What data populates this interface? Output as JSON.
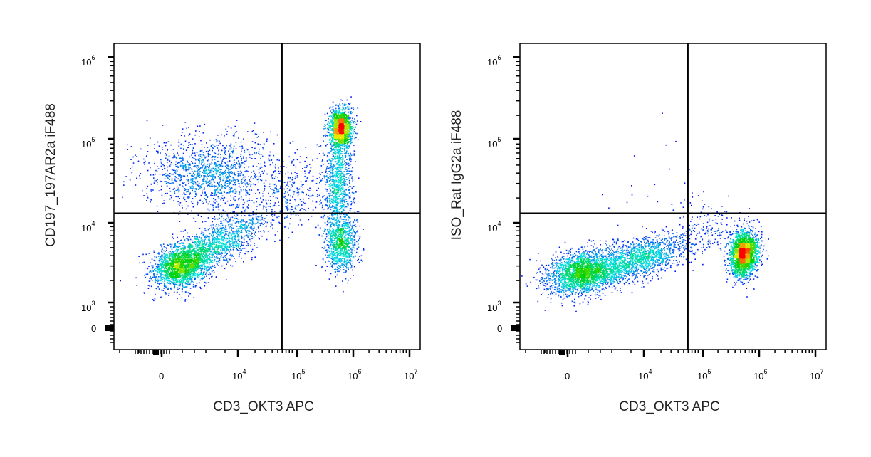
{
  "chart_data": [
    {
      "type": "scatter",
      "subtype": "flow-cytometry-density-dot-plot",
      "xlabel": "CD3_OKT3 APC",
      "ylabel": "CD197_197AR2a iF488",
      "x_ticks": [
        {
          "base": "",
          "exp": "",
          "plain": "0"
        },
        {
          "base": "10",
          "exp": "4"
        },
        {
          "base": "10",
          "exp": "5"
        },
        {
          "base": "10",
          "exp": "6"
        },
        {
          "base": "10",
          "exp": "7"
        }
      ],
      "y_ticks": [
        {
          "base": "",
          "exp": "",
          "plain": "0"
        },
        {
          "base": "10",
          "exp": "3"
        },
        {
          "base": "10",
          "exp": "4"
        },
        {
          "base": "10",
          "exp": "5"
        },
        {
          "base": "10",
          "exp": "6"
        }
      ],
      "quadrant_gate": {
        "x": 59000,
        "y": 13000
      },
      "populations_log10": [
        {
          "cx": 3.0,
          "cy": 3.48,
          "sx": 0.25,
          "sy": 0.13,
          "rho": 0.2,
          "n": 1700
        },
        {
          "cx": 3.6,
          "cy": 3.75,
          "sx": 0.45,
          "sy": 0.2,
          "rho": 0.7,
          "n": 1400
        },
        {
          "cx": 3.5,
          "cy": 4.6,
          "sx": 0.55,
          "sy": 0.22,
          "rho": 0,
          "n": 1300
        },
        {
          "cx": 5.8,
          "cy": 5.15,
          "sx": 0.1,
          "sy": 0.12,
          "rho": 0,
          "n": 1400
        },
        {
          "cx": 5.75,
          "cy": 4.5,
          "sx": 0.12,
          "sy": 0.3,
          "rho": 0,
          "n": 900
        },
        {
          "cx": 5.8,
          "cy": 3.75,
          "sx": 0.14,
          "sy": 0.17,
          "rho": 0,
          "n": 900
        },
        {
          "cx": 5.0,
          "cy": 4.4,
          "sx": 0.35,
          "sy": 0.25,
          "rho": 0,
          "n": 300
        }
      ]
    },
    {
      "type": "scatter",
      "subtype": "flow-cytometry-density-dot-plot",
      "xlabel": "CD3_OKT3 APC",
      "ylabel": "ISO_Rat IgG2a iF488",
      "x_ticks": [
        {
          "base": "",
          "exp": "",
          "plain": "0"
        },
        {
          "base": "10",
          "exp": "4"
        },
        {
          "base": "10",
          "exp": "5"
        },
        {
          "base": "10",
          "exp": "6"
        },
        {
          "base": "10",
          "exp": "7"
        }
      ],
      "y_ticks": [
        {
          "base": "",
          "exp": "",
          "plain": "0"
        },
        {
          "base": "10",
          "exp": "3"
        },
        {
          "base": "10",
          "exp": "4"
        },
        {
          "base": "10",
          "exp": "5"
        },
        {
          "base": "10",
          "exp": "6"
        }
      ],
      "quadrant_gate": {
        "x": 59000,
        "y": 13000
      },
      "populations_log10": [
        {
          "cx": 2.9,
          "cy": 3.4,
          "sx": 0.3,
          "sy": 0.13,
          "rho": 0.2,
          "n": 2000
        },
        {
          "cx": 3.8,
          "cy": 3.55,
          "sx": 0.5,
          "sy": 0.15,
          "rho": 0.6,
          "n": 1700
        },
        {
          "cx": 5.75,
          "cy": 3.63,
          "sx": 0.12,
          "sy": 0.14,
          "rho": 0.1,
          "n": 2200
        },
        {
          "cx": 5.1,
          "cy": 3.95,
          "sx": 0.3,
          "sy": 0.15,
          "rho": 0,
          "n": 150
        },
        {
          "cx": 4.3,
          "cy": 4.6,
          "sx": 0.5,
          "sy": 0.35,
          "rho": 0,
          "n": 18
        }
      ]
    }
  ],
  "colors": {
    "low": "#0000ff",
    "mid1": "#00e0e0",
    "mid2": "#00d000",
    "mid3": "#f0f000",
    "high": "#ff0000"
  }
}
